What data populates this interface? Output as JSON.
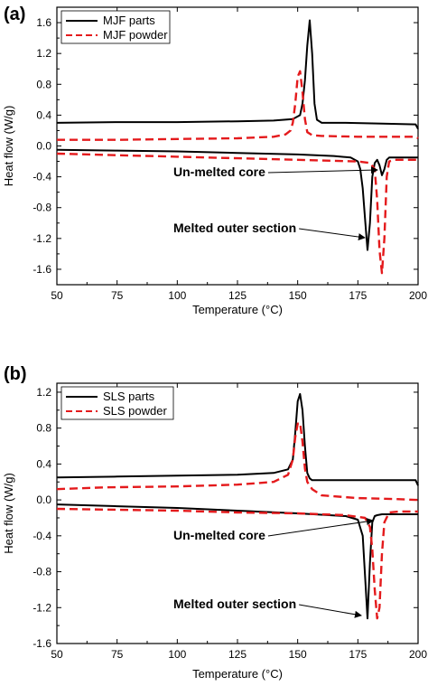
{
  "chart_data": [
    {
      "type": "line",
      "panel_label": "(a)",
      "xlabel": "Temperature (°C)",
      "ylabel": "Heat flow (W/g)",
      "xlim": [
        50,
        200
      ],
      "ylim": [
        -1.8,
        1.8
      ],
      "xticks": [
        50,
        75,
        100,
        125,
        150,
        175,
        200
      ],
      "yticks": [
        -1.6,
        -1.2,
        -0.8,
        -0.4,
        0.0,
        0.4,
        0.8,
        1.2,
        1.6
      ],
      "legend_position": "top-left",
      "series": [
        {
          "name": "MJF parts",
          "color": "#000000",
          "dash": "solid",
          "x": [
            50,
            75,
            100,
            125,
            140,
            148,
            151,
            152,
            153,
            154,
            155,
            156,
            157,
            158,
            160,
            170,
            185,
            199,
            200
          ],
          "y": [
            0.3,
            0.31,
            0.31,
            0.32,
            0.33,
            0.35,
            0.4,
            0.55,
            0.85,
            1.3,
            1.63,
            1.2,
            0.55,
            0.34,
            0.3,
            0.3,
            0.29,
            0.28,
            0.22
          ]
        },
        {
          "name": "",
          "color": "#000000",
          "dash": "solid",
          "x": [
            50,
            75,
            100,
            125,
            150,
            165,
            172,
            175,
            176,
            177,
            178,
            179,
            180,
            181,
            182,
            183,
            184,
            185,
            186,
            187,
            188,
            190,
            199,
            200
          ],
          "y": [
            -0.05,
            -0.06,
            -0.07,
            -0.09,
            -0.11,
            -0.13,
            -0.15,
            -0.2,
            -0.3,
            -0.55,
            -0.95,
            -1.35,
            -1.0,
            -0.4,
            -0.22,
            -0.18,
            -0.25,
            -0.38,
            -0.3,
            -0.18,
            -0.15,
            -0.15,
            -0.15,
            -0.15
          ]
        },
        {
          "name": "MJF powder",
          "color": "#e41a1c",
          "dash": "dashed",
          "x": [
            50,
            75,
            100,
            125,
            140,
            145,
            147,
            148,
            149,
            150,
            151,
            152,
            153,
            154,
            156,
            160,
            175,
            190,
            199,
            200
          ],
          "y": [
            0.08,
            0.08,
            0.09,
            0.1,
            0.12,
            0.15,
            0.2,
            0.3,
            0.55,
            0.9,
            0.97,
            0.7,
            0.35,
            0.18,
            0.14,
            0.13,
            0.12,
            0.12,
            0.12,
            0.1
          ]
        },
        {
          "name": "",
          "color": "#e41a1c",
          "dash": "dashed",
          "x": [
            50,
            75,
            100,
            125,
            150,
            175,
            180,
            182,
            183,
            184,
            185,
            186,
            187,
            188,
            190,
            199,
            200
          ],
          "y": [
            -0.1,
            -0.12,
            -0.14,
            -0.16,
            -0.18,
            -0.2,
            -0.22,
            -0.3,
            -0.7,
            -1.35,
            -1.65,
            -1.2,
            -0.4,
            -0.2,
            -0.18,
            -0.18,
            -0.18
          ]
        }
      ],
      "annotations": [
        {
          "text": "Un-melted core",
          "x": 182,
          "y": -0.2
        },
        {
          "text": "Melted outer section",
          "x": 179,
          "y": -1.3
        }
      ]
    },
    {
      "type": "line",
      "panel_label": "(b)",
      "xlabel": "Temperature (°C)",
      "ylabel": "Heat flow (W/g)",
      "xlim": [
        50,
        200
      ],
      "ylim": [
        -1.6,
        1.3
      ],
      "xticks": [
        50,
        75,
        100,
        125,
        150,
        175,
        200
      ],
      "yticks": [
        -1.6,
        -1.2,
        -0.8,
        -0.4,
        0.0,
        0.4,
        0.8,
        1.2
      ],
      "legend_position": "top-left",
      "series": [
        {
          "name": "SLS parts",
          "color": "#000000",
          "dash": "solid",
          "x": [
            50,
            75,
            100,
            125,
            140,
            146,
            148,
            149,
            150,
            151,
            152,
            153,
            154,
            155,
            156,
            160,
            180,
            199,
            200
          ],
          "y": [
            0.25,
            0.26,
            0.27,
            0.28,
            0.3,
            0.34,
            0.45,
            0.75,
            1.1,
            1.18,
            1.0,
            0.6,
            0.3,
            0.24,
            0.22,
            0.22,
            0.22,
            0.22,
            0.16
          ]
        },
        {
          "name": "",
          "color": "#000000",
          "dash": "solid",
          "x": [
            50,
            75,
            100,
            125,
            150,
            170,
            175,
            177,
            178,
            179,
            180,
            181,
            182,
            183,
            185,
            190,
            199,
            200
          ],
          "y": [
            -0.05,
            -0.07,
            -0.09,
            -0.12,
            -0.15,
            -0.18,
            -0.22,
            -0.4,
            -0.85,
            -1.32,
            -0.7,
            -0.25,
            -0.18,
            -0.17,
            -0.16,
            -0.16,
            -0.16,
            -0.16
          ]
        },
        {
          "name": "SLS powder",
          "color": "#e41a1c",
          "dash": "dashed",
          "x": [
            50,
            70,
            100,
            125,
            140,
            146,
            148,
            149,
            150,
            151,
            152,
            153,
            154,
            156,
            160,
            175,
            190,
            199,
            200
          ],
          "y": [
            0.12,
            0.14,
            0.15,
            0.17,
            0.2,
            0.28,
            0.45,
            0.7,
            0.85,
            0.86,
            0.65,
            0.35,
            0.2,
            0.12,
            0.05,
            0.02,
            0.01,
            0.0,
            0.0
          ]
        },
        {
          "name": "",
          "color": "#e41a1c",
          "dash": "dashed",
          "x": [
            50,
            75,
            100,
            125,
            150,
            170,
            178,
            180,
            181,
            182,
            183,
            184,
            185,
            186,
            188,
            192,
            199,
            200
          ],
          "y": [
            -0.1,
            -0.11,
            -0.12,
            -0.14,
            -0.15,
            -0.17,
            -0.2,
            -0.3,
            -0.55,
            -1.0,
            -1.32,
            -1.2,
            -0.6,
            -0.25,
            -0.14,
            -0.13,
            -0.13,
            -0.13
          ]
        }
      ],
      "annotations": [
        {
          "text": "Un-melted core",
          "x": 180,
          "y": -0.2
        },
        {
          "text": "Melted outer section",
          "x": 179,
          "y": -1.32
        }
      ]
    }
  ]
}
